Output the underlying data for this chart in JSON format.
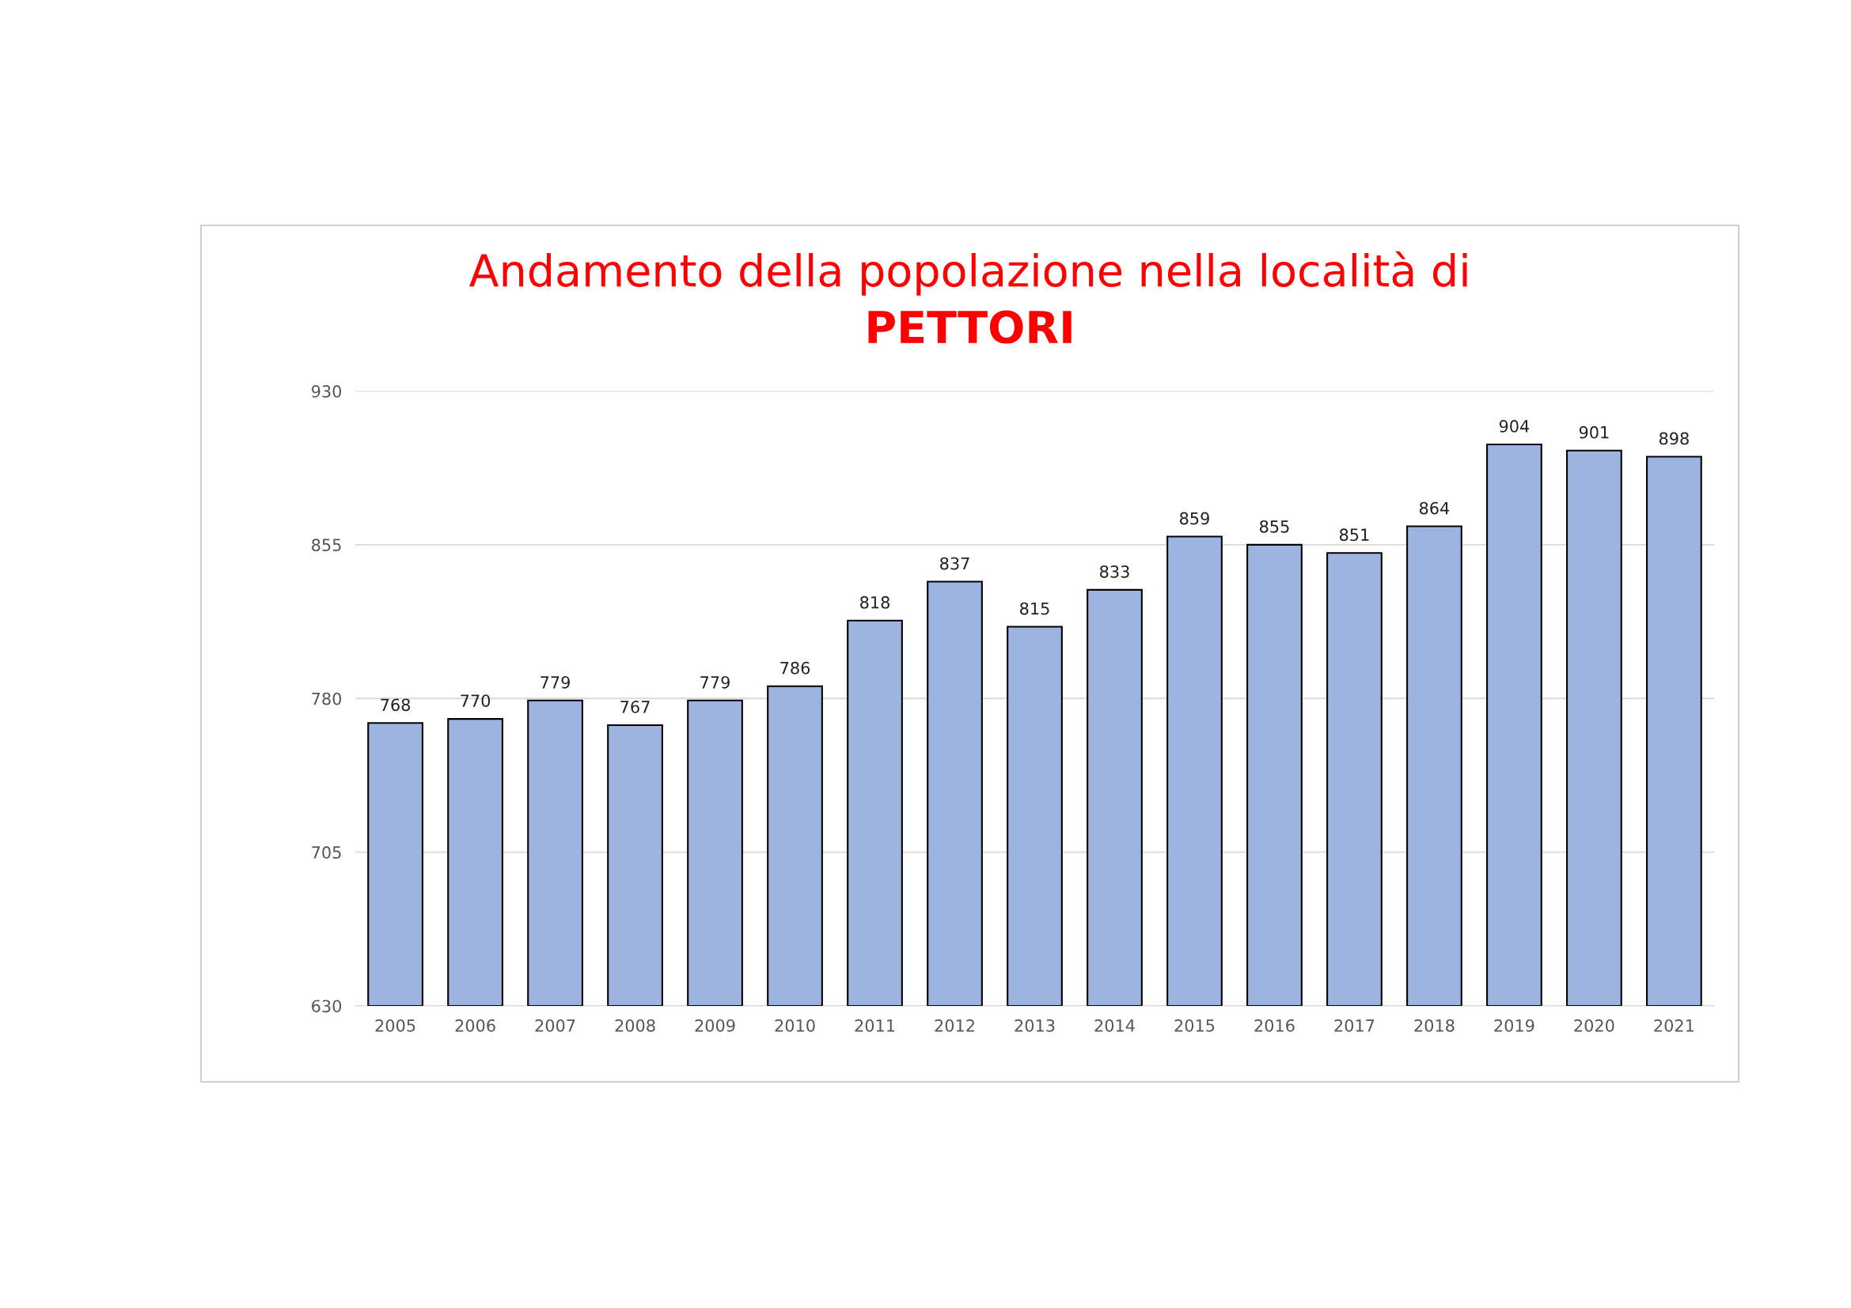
{
  "chart_data": {
    "type": "bar",
    "title": "Andamento della popolazione nella località di",
    "subtitle": "PETTORI",
    "categories": [
      "2005",
      "2006",
      "2007",
      "2008",
      "2009",
      "2010",
      "2011",
      "2012",
      "2013",
      "2014",
      "2015",
      "2016",
      "2017",
      "2018",
      "2019",
      "2020",
      "2021"
    ],
    "values": [
      768,
      770,
      779,
      767,
      779,
      786,
      818,
      837,
      815,
      833,
      859,
      855,
      851,
      864,
      904,
      901,
      898
    ],
    "color": "#9db4e0",
    "ylim": [
      630,
      930
    ],
    "yticks": [
      630,
      705,
      780,
      855,
      930
    ],
    "grid": "y",
    "data_labels": true,
    "legend": false
  }
}
